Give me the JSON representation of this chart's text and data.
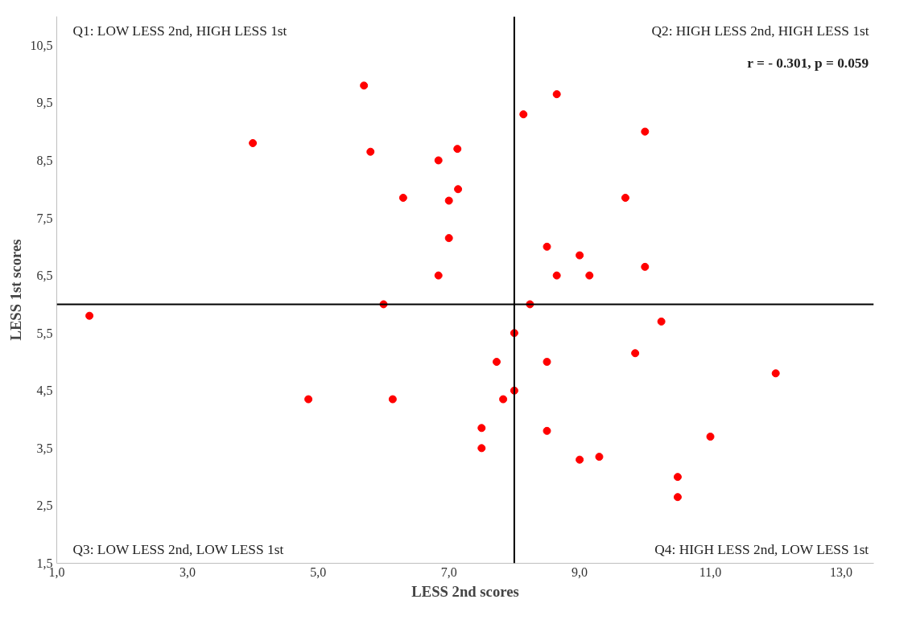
{
  "chart_data": {
    "type": "scatter",
    "xlabel": "LESS 2nd scores",
    "ylabel": "LESS 1st scores",
    "x": [
      1.5,
      4.0,
      4.85,
      5.7,
      5.8,
      6.0,
      6.14,
      6.3,
      6.84,
      6.84,
      7.0,
      7.0,
      7.13,
      7.14,
      7.5,
      7.5,
      7.73,
      7.83,
      8.0,
      8.0,
      8.14,
      8.24,
      8.5,
      8.5,
      8.5,
      8.65,
      8.65,
      9.0,
      9.0,
      9.15,
      9.3,
      9.7,
      9.85,
      10.0,
      10.0,
      10.25,
      10.5,
      10.5,
      11.0,
      12.0
    ],
    "series": [
      {
        "color": "#ff0000",
        "values": [
          5.8,
          8.8,
          4.35,
          9.8,
          8.65,
          6.0,
          4.35,
          7.85,
          8.5,
          6.5,
          7.8,
          7.15,
          8.7,
          8.0,
          3.85,
          3.5,
          5.0,
          4.35,
          5.5,
          4.5,
          9.3,
          6.0,
          7.0,
          5.0,
          3.8,
          9.65,
          6.5,
          6.85,
          3.3,
          6.5,
          3.35,
          7.85,
          5.15,
          9.0,
          6.65,
          5.7,
          3.0,
          2.65,
          3.7,
          4.8
        ]
      }
    ],
    "marker": "circle",
    "grid": false,
    "xlim": [
      1.0,
      13.5
    ],
    "ylim": [
      1.5,
      11.0
    ],
    "xticks": [
      {
        "value": 1,
        "label": "1,0"
      },
      {
        "value": 3,
        "label": "3,0"
      },
      {
        "value": 5,
        "label": "5,0"
      },
      {
        "value": 7,
        "label": "7,0"
      },
      {
        "value": 9,
        "label": "9,0"
      },
      {
        "value": 11,
        "label": "11,0"
      },
      {
        "value": 13,
        "label": "13,0"
      }
    ],
    "yticks": [
      {
        "value": 1.5,
        "label": "1,5"
      },
      {
        "value": 2.5,
        "label": "2,5"
      },
      {
        "value": 3.5,
        "label": "3,5"
      },
      {
        "value": 4.5,
        "label": "4,5"
      },
      {
        "value": 5.5,
        "label": "5,5"
      },
      {
        "value": 6.5,
        "label": "6,5"
      },
      {
        "value": 7.5,
        "label": "7,5"
      },
      {
        "value": 8.5,
        "label": "8,5"
      },
      {
        "value": 9.5,
        "label": "9,5"
      },
      {
        "value": 10.5,
        "label": "10,5"
      }
    ],
    "ref_lines": [
      {
        "axis": "x",
        "value": 8,
        "color": "#000000"
      },
      {
        "axis": "y",
        "value": 6,
        "color": "#000000"
      }
    ],
    "annotations": [
      "Q1: LOW LESS 2nd, HIGH LESS 1st",
      "Q2: HIGH LESS 2nd, HIGH LESS 1st",
      "r = - 0.301, p = 0.059",
      "Q3: LOW LESS 2nd, LOW LESS 1st",
      "Q4: HIGH LESS 2nd, LOW LESS 1st"
    ]
  }
}
